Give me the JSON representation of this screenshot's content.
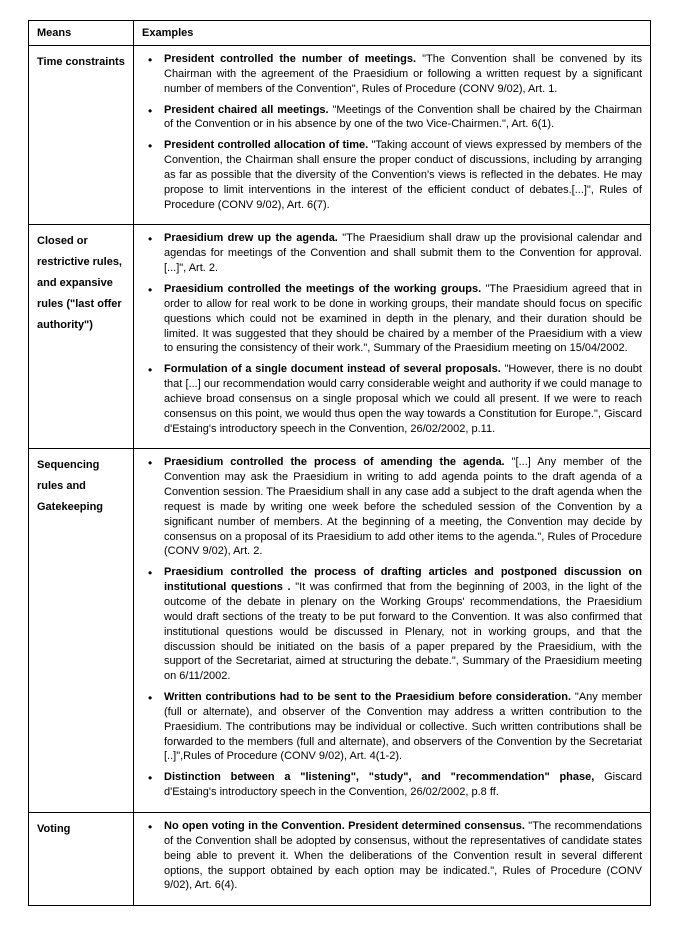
{
  "headers": {
    "means": "Means",
    "examples": "Examples"
  },
  "rows": [
    {
      "means": "Time constraints",
      "items": [
        {
          "lead": "President controlled the number of meetings.",
          "tail": " \"The Convention shall be convened by its Chairman with the agreement of the Praesidium or following a written request by a significant number of members of the Convention\", Rules of Procedure (CONV 9/02), Art. 1."
        },
        {
          "lead": "President chaired all meetings.",
          "tail": " \"Meetings of the Convention shall be chaired by the Chairman of the Convention or in his absence by one of the two Vice-Chairmen.\", Art. 6(1)."
        },
        {
          "lead": "President controlled allocation of time.",
          "tail": " \"Taking account of views expressed by members of the Convention, the Chairman shall ensure the proper conduct of discussions, including by arranging as far as possible that the diversity of the Convention's views is reflected in the debates. He may propose to limit interventions in the interest of the efficient conduct of debates.[...]\", Rules of Procedure (CONV 9/02), Art. 6(7)."
        }
      ]
    },
    {
      "means": "Closed or restrictive rules, and expansive rules (\"last offer authority\")",
      "items": [
        {
          "lead": "Praesidium drew up the agenda.",
          "tail": " \"The Praesidium shall draw up the provisional calendar and agendas for meetings of the Convention and shall submit them to the Convention for approval. [...]\", Art. 2."
        },
        {
          "lead": "Praesidium controlled the meetings of the working groups.",
          "tail": " \"The Praesidium agreed that in order to allow for real work to be done in working groups, their mandate should focus on specific questions which could not be examined in depth in the plenary, and their duration should be limited. It was suggested that they should be chaired by a member of the Praesidium with a view to ensuring the consistency of their work.\", Summary of the Praesidium meeting on 15/04/2002."
        },
        {
          "lead": "Formulation of a single document instead of several proposals.",
          "tail": " \"However, there is no doubt that [...] our recommendation would carry considerable weight and authority if we could manage to achieve broad consensus on a single proposal which we could all present. If we were to reach consensus on this point, we would thus open the way towards a Constitution for Europe.\", Giscard d'Estaing's introductory speech in the Convention, 26/02/2002, p.11."
        }
      ]
    },
    {
      "means": "Sequencing rules and Gatekeeping",
      "items": [
        {
          "lead": "Praesidium controlled the process of amending the agenda.",
          "tail": " \"[...] Any member of the Convention may ask the Praesidium in writing to add agenda points to the draft agenda of a Convention session. The Praesidium shall in any case add a subject to the draft agenda when the request is made by writing one week before the scheduled session of the Convention by a significant number of members. At the beginning of a meeting, the Convention may decide by consensus on a proposal of its Praesidium to add other items to the agenda.\", Rules of Procedure (CONV 9/02), Art. 2."
        },
        {
          "lead": "Praesidium controlled the process of drafting articles and postponed discussion on institutional questions .",
          "tail": " \"It was confirmed that from the beginning of 2003, in the light of the outcome of the debate in plenary on the Working Groups' recommendations, the Praesidium would draft sections of the treaty to be put forward to the Convention. It was also confirmed that institutional questions would be discussed in Plenary, not in working groups, and that the discussion should be initiated on the basis of a paper prepared by the Praesidium, with the support of the Secretariat, aimed at structuring the debate.\", Summary of the Praesidium meeting on 6/11/2002."
        },
        {
          "lead": "Written contributions had to be sent to the Praesidium before consideration.",
          "tail": " \"Any member (full or alternate), and observer of the Convention may address a written contribution to the Praesidium. The contributions may be individual or collective. Such written contributions shall be forwarded to the members (full and alternate), and observers of the Convention by the Secretariat [..]\",Rules of Procedure (CONV 9/02), Art. 4(1-2)."
        },
        {
          "lead": "Distinction between a \"listening\", \"study\", and \"recommendation\" phase,",
          "tail": " Giscard d'Estaing's introductory speech in the Convention, 26/02/2002, p.8 ff."
        }
      ]
    },
    {
      "means": "Voting",
      "items": [
        {
          "lead": "No open voting in the Convention. President determined consensus.",
          "tail": " \"The recommendations of the Convention shall be adopted by consensus, without the representatives of candidate states being able to prevent it. When the deliberations of the Convention result in several different options, the support obtained by each option may be indicated.\", Rules of Procedure (CONV 9/02), Art. 6(4)."
        }
      ]
    }
  ]
}
